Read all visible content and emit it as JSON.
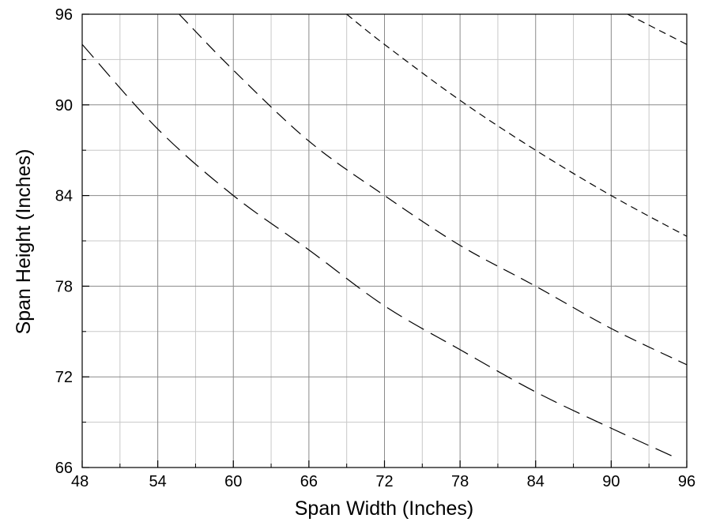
{
  "chart_data": {
    "type": "line",
    "title": "",
    "xlabel": "Span Width (Inches)",
    "ylabel": "Span Height (Inches)",
    "xlim": [
      48,
      96
    ],
    "ylim": [
      66,
      96
    ],
    "x_ticks": [
      "48",
      "54",
      "60",
      "66",
      "72",
      "78",
      "84",
      "90",
      "96"
    ],
    "y_ticks": [
      "66",
      "72",
      "78",
      "84",
      "90",
      "96"
    ],
    "grid": true,
    "minor_grid": true,
    "line_color": "#000000",
    "series": [
      {
        "dash": "long-dash",
        "points": [
          [
            48,
            94.0
          ],
          [
            54,
            88.4
          ],
          [
            60,
            84.0
          ],
          [
            66,
            80.4
          ],
          [
            72,
            76.7
          ],
          [
            78,
            73.8
          ],
          [
            84,
            71.0
          ],
          [
            90,
            68.6
          ],
          [
            95,
            66.7
          ]
        ]
      },
      {
        "dash": "medium-dash",
        "points": [
          [
            55.7,
            96.0
          ],
          [
            60,
            92.3
          ],
          [
            66,
            87.6
          ],
          [
            72,
            84.0
          ],
          [
            78,
            80.7
          ],
          [
            84,
            78.0
          ],
          [
            90,
            75.2
          ],
          [
            96,
            72.8
          ]
        ]
      },
      {
        "dash": "short-dash",
        "points": [
          [
            69,
            96.0
          ],
          [
            72,
            94.0
          ],
          [
            78,
            90.3
          ],
          [
            84,
            87.0
          ],
          [
            90,
            84.0
          ],
          [
            96,
            81.3
          ]
        ]
      },
      {
        "dash": "short-dash",
        "points": [
          [
            91.3,
            96.0
          ],
          [
            96,
            94.0
          ]
        ]
      }
    ]
  }
}
